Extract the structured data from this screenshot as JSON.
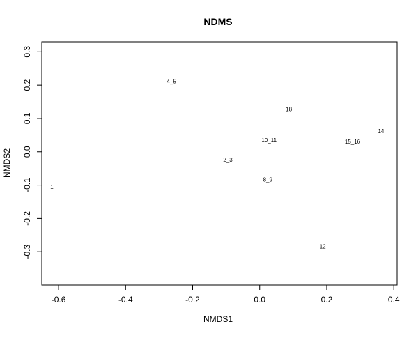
{
  "chart_data": {
    "type": "scatter",
    "title": "NDMS",
    "xlabel": "NMDS1",
    "ylabel": "NMDS2",
    "xlim": [
      -0.65,
      0.41
    ],
    "ylim": [
      -0.4,
      0.33
    ],
    "xticks": [
      -0.6,
      -0.4,
      -0.2,
      0.0,
      0.2,
      0.4
    ],
    "xtick_labels": [
      "-0.6",
      "-0.4",
      "-0.2",
      "0.0",
      "0.2",
      "0.4"
    ],
    "yticks": [
      -0.3,
      -0.2,
      -0.1,
      0.0,
      0.1,
      0.2,
      0.3
    ],
    "ytick_labels": [
      "-0.3",
      "-0.2",
      "-0.1",
      "0.0",
      "0.1",
      "0.2",
      "0.3"
    ],
    "grid": false,
    "legend": "none",
    "points": [
      {
        "label": "1",
        "x": -0.62,
        "y": -0.105
      },
      {
        "label": "4_5",
        "x": -0.263,
        "y": 0.212
      },
      {
        "label": "2_3",
        "x": -0.095,
        "y": -0.024
      },
      {
        "label": "10_11",
        "x": 0.028,
        "y": 0.035
      },
      {
        "label": "8_9",
        "x": 0.024,
        "y": -0.083
      },
      {
        "label": "18",
        "x": 0.087,
        "y": 0.128
      },
      {
        "label": "12",
        "x": 0.188,
        "y": -0.284
      },
      {
        "label": "15_16",
        "x": 0.277,
        "y": 0.031
      },
      {
        "label": "14",
        "x": 0.362,
        "y": 0.062
      }
    ]
  }
}
